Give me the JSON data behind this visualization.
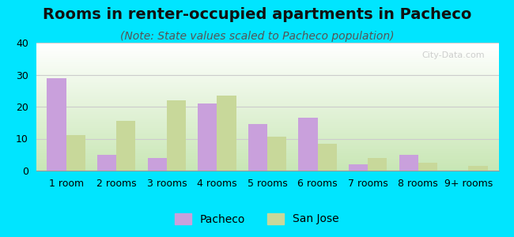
{
  "title": "Rooms in renter-occupied apartments in Pacheco",
  "subtitle": "(Note: State values scaled to Pacheco population)",
  "categories": [
    "1 room",
    "2 rooms",
    "3 rooms",
    "4 rooms",
    "5 rooms",
    "6 rooms",
    "7 rooms",
    "8 rooms",
    "9+ rooms"
  ],
  "pacheco_values": [
    29,
    5,
    4,
    21,
    14.5,
    16.5,
    2,
    5,
    0
  ],
  "sanjose_values": [
    11,
    15.5,
    22,
    23.5,
    10.5,
    8.5,
    4,
    2.5,
    1.5
  ],
  "pacheco_color": "#c9a0dc",
  "sanjose_color": "#c8d89a",
  "background_outer": "#00e5ff",
  "ylim": [
    0,
    40
  ],
  "yticks": [
    0,
    10,
    20,
    30,
    40
  ],
  "bar_width": 0.38,
  "title_fontsize": 14,
  "subtitle_fontsize": 10,
  "tick_fontsize": 9,
  "legend_fontsize": 10
}
